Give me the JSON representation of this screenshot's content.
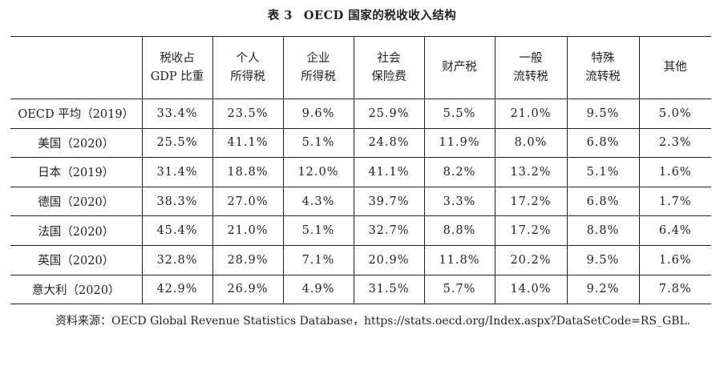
{
  "title": {
    "label": "表 3",
    "text": "OECD 国家的税收收入结构"
  },
  "table": {
    "headers": [
      [
        ""
      ],
      [
        "税收占",
        "GDP 比重"
      ],
      [
        "个人",
        "所得税"
      ],
      [
        "企业",
        "所得税"
      ],
      [
        "社会",
        "保险费"
      ],
      [
        "财产税"
      ],
      [
        "一般",
        "流转税"
      ],
      [
        "特殊",
        "流转税"
      ],
      [
        "其他"
      ]
    ],
    "rows": [
      {
        "country": "OECD 平均（2019）",
        "values": [
          "33.4%",
          "23.5%",
          "9.6%",
          "25.9%",
          "5.5%",
          "21.0%",
          "9.5%",
          "5.0%"
        ]
      },
      {
        "country": "美国（2020）",
        "values": [
          "25.5%",
          "41.1%",
          "5.1%",
          "24.8%",
          "11.9%",
          "8.0%",
          "6.8%",
          "2.3%"
        ]
      },
      {
        "country": "日本（2019）",
        "values": [
          "31.4%",
          "18.8%",
          "12.0%",
          "41.1%",
          "8.2%",
          "13.2%",
          "5.1%",
          "1.6%"
        ]
      },
      {
        "country": "德国（2020）",
        "values": [
          "38.3%",
          "27.0%",
          "4.3%",
          "39.7%",
          "3.3%",
          "17.2%",
          "6.8%",
          "1.7%"
        ]
      },
      {
        "country": "法国（2020）",
        "values": [
          "45.4%",
          "21.0%",
          "5.1%",
          "32.7%",
          "8.8%",
          "17.2%",
          "8.8%",
          "6.4%"
        ]
      },
      {
        "country": "英国（2020）",
        "values": [
          "32.8%",
          "28.9%",
          "7.1%",
          "20.9%",
          "11.8%",
          "20.2%",
          "9.5%",
          "1.6%"
        ]
      },
      {
        "country": "意大利（2020）",
        "values": [
          "42.9%",
          "26.9%",
          "4.9%",
          "31.5%",
          "5.7%",
          "14.0%",
          "9.2%",
          "7.8%"
        ]
      }
    ]
  },
  "source": "资料来源：OECD Global Revenue Statistics Database，https://stats.oecd.org/Index.aspx?DataSetCode=RS_GBL."
}
